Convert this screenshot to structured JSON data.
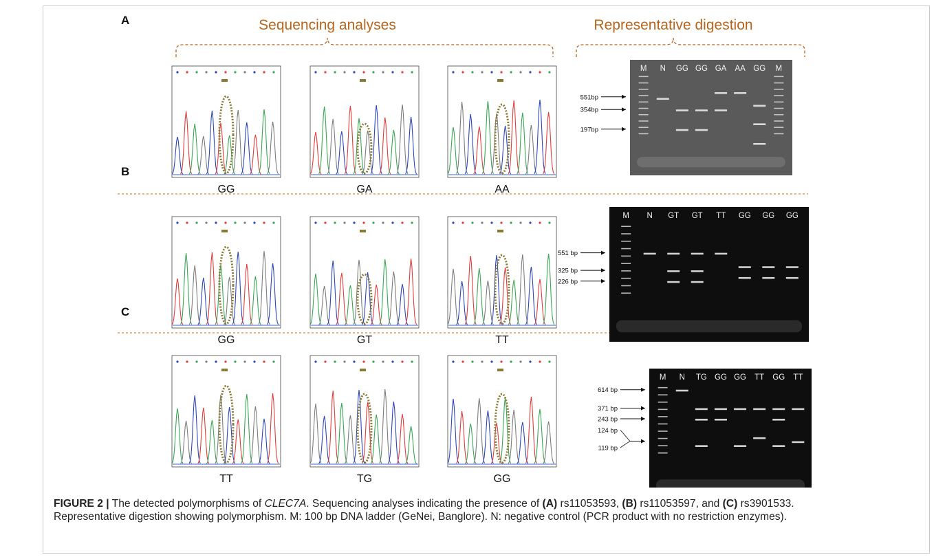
{
  "headers": {
    "sequencing": "Sequencing analyses",
    "digestion": "Representative digestion"
  },
  "panels": [
    {
      "letter": "A",
      "genotypes": [
        "GG",
        "GA",
        "AA"
      ],
      "gel": {
        "style": "grey",
        "lanes": [
          "M",
          "N",
          "GG",
          "GG",
          "GA",
          "AA",
          "GG",
          "M"
        ],
        "markers": [
          "551bp",
          "354bp",
          "197bp"
        ]
      }
    },
    {
      "letter": "B",
      "genotypes": [
        "GG",
        "GT",
        "TT"
      ],
      "gel": {
        "style": "black",
        "lanes": [
          "M",
          "N",
          "GT",
          "GT",
          "TT",
          "GG",
          "GG",
          "GG"
        ],
        "markers": [
          "551 bp",
          "325 bp",
          "226 bp"
        ]
      }
    },
    {
      "letter": "C",
      "genotypes": [
        "TT",
        "TG",
        "GG"
      ],
      "gel": {
        "style": "black",
        "lanes": [
          "M",
          "N",
          "TG",
          "GG",
          "GG",
          "TT",
          "GG",
          "TT"
        ],
        "markers": [
          "614 bp",
          "371 bp",
          "243 bp",
          "124 bp",
          "119 bp"
        ]
      }
    }
  ],
  "caption": {
    "label": "FIGURE 2 |",
    "text1": " The detected polymorphisms of ",
    "gene": "CLEC7A",
    "text2": ". Sequencing analyses indicating the presence of ",
    "a": "(A)",
    "snp_a": " rs11053593, ",
    "b": "(B)",
    "snp_b": " rs11053597, and ",
    "c": "(C)",
    "snp_c": " rs3901533.",
    "line2": "Representative digestion showing polymorphism. M: 100 bp DNA ladder (GeNei, Banglore). N: negative control (PCR product with no restriction enzymes)."
  },
  "colors": {
    "accent": "#b5651d",
    "trace_blue": "#2e46b8",
    "trace_red": "#e03c3c",
    "trace_green": "#3aa655",
    "trace_grey": "#7d7d7d",
    "highlight": "#8a7a3a"
  }
}
